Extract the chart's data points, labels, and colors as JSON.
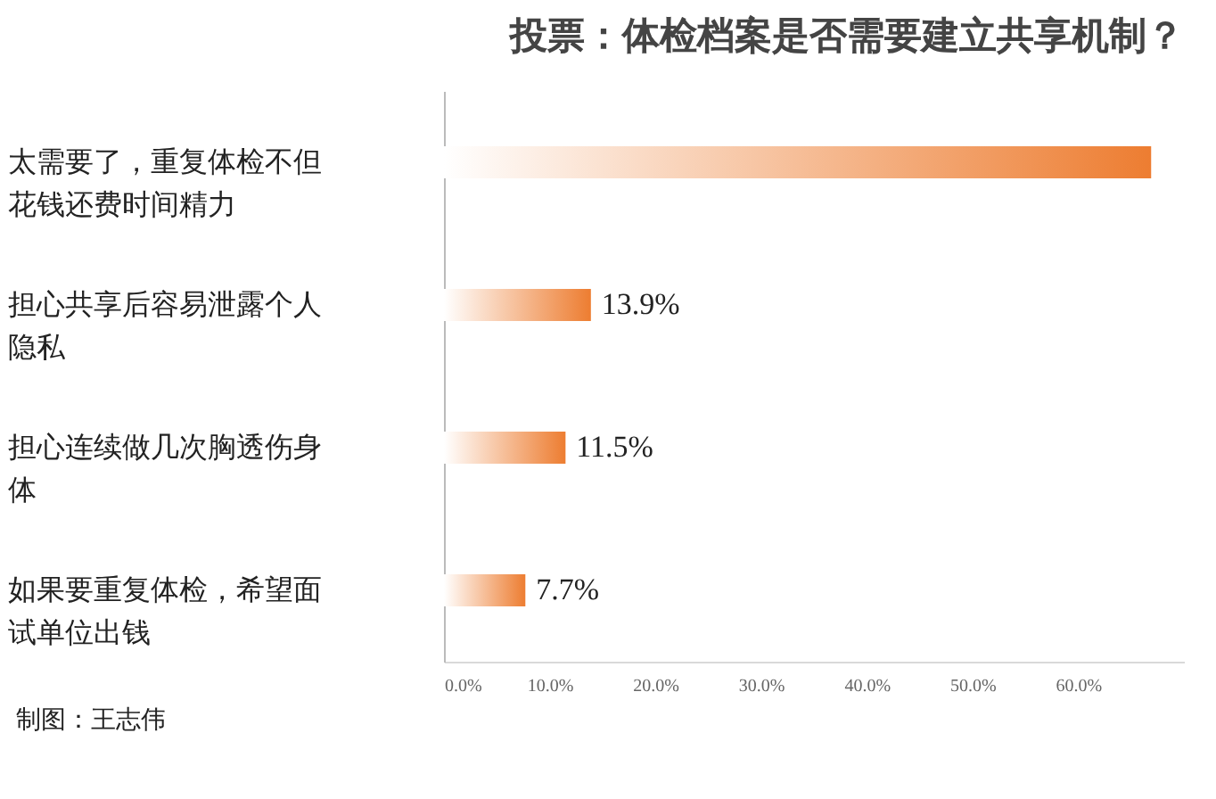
{
  "chart_data": {
    "type": "bar",
    "orientation": "horizontal",
    "title": "投票：体检档案是否需要建立共享机制？",
    "categories": [
      "太需要了，重复体检不但花钱还费时间精力",
      "担心共享后容易泄露个人隐私",
      "担心连续做几次胸透伤身体",
      "如果要重复体检，希望面试单位出钱"
    ],
    "values": [
      66.9,
      13.9,
      11.5,
      7.7
    ],
    "value_labels": [
      null,
      "13.9%",
      "11.5%",
      "7.7%"
    ],
    "color": "#ed7d31",
    "xlim": [
      0,
      70
    ],
    "xticks": [
      {
        "value": 0,
        "label": "0.0%"
      },
      {
        "value": 10,
        "label": "10.0%"
      },
      {
        "value": 20,
        "label": "20.0%"
      },
      {
        "value": 30,
        "label": "30.0%"
      },
      {
        "value": 40,
        "label": "40.0%"
      },
      {
        "value": 50,
        "label": "50.0%"
      },
      {
        "value": 60,
        "label": "60.0%"
      }
    ],
    "grid": false,
    "annotations": [
      "制图：王志伟"
    ]
  }
}
